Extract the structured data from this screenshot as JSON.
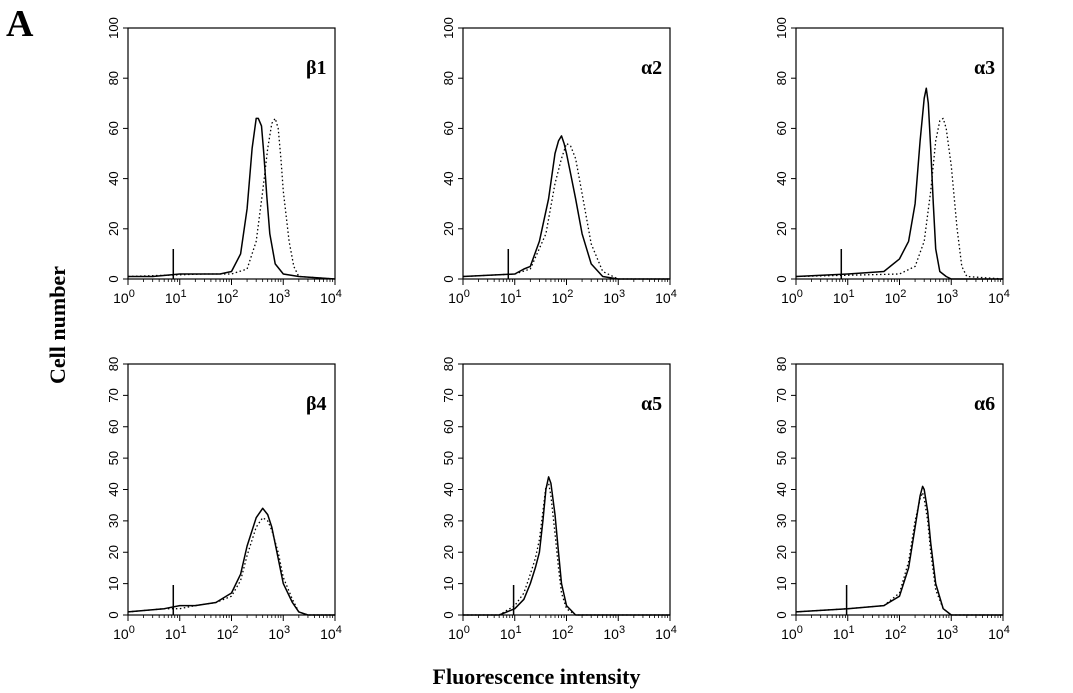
{
  "figure": {
    "panel_label": "A",
    "ylabel": "Cell number",
    "xlabel": "Fluorescence intensity"
  },
  "colors": {
    "line": "#000000",
    "background": "#ffffff"
  },
  "chart_data": [
    {
      "type": "line",
      "label": "β1",
      "xscale": "log",
      "xlim": [
        1,
        10000
      ],
      "ylim": [
        0,
        100
      ],
      "yticks": [
        0,
        20,
        40,
        60,
        80,
        100
      ],
      "xticks": [
        "10^0",
        "10^1",
        "10^2",
        "10^3",
        "10^4"
      ],
      "marker_x": 7.5,
      "series": [
        {
          "style": "solid",
          "x": [
            1,
            3,
            10,
            30,
            60,
            100,
            150,
            200,
            250,
            300,
            330,
            380,
            420,
            480,
            550,
            700,
            1000,
            2000,
            10000
          ],
          "y": [
            1,
            1,
            2,
            2,
            2,
            3,
            10,
            28,
            52,
            64,
            64,
            61,
            50,
            33,
            18,
            6,
            2,
            1,
            0
          ]
        },
        {
          "style": "dotted",
          "x": [
            1,
            30,
            100,
            200,
            300,
            400,
            500,
            600,
            700,
            800,
            900,
            1000,
            1300,
            1600,
            2000,
            10000
          ],
          "y": [
            1,
            2,
            2,
            4,
            15,
            35,
            52,
            62,
            64,
            60,
            48,
            35,
            15,
            5,
            1,
            0
          ]
        }
      ]
    },
    {
      "type": "line",
      "label": "α2",
      "xscale": "log",
      "xlim": [
        1,
        10000
      ],
      "ylim": [
        0,
        100
      ],
      "yticks": [
        0,
        20,
        40,
        60,
        80,
        100
      ],
      "xticks": [
        "10^0",
        "10^1",
        "10^2",
        "10^3",
        "10^4"
      ],
      "marker_x": 7.5,
      "series": [
        {
          "style": "solid",
          "x": [
            1,
            10,
            15,
            20,
            30,
            45,
            60,
            70,
            80,
            90,
            100,
            120,
            150,
            200,
            300,
            500,
            1000,
            10000
          ],
          "y": [
            1,
            2,
            4,
            5,
            15,
            32,
            50,
            55,
            57,
            54,
            50,
            42,
            32,
            18,
            6,
            1,
            0,
            0
          ]
        },
        {
          "style": "dotted",
          "x": [
            1,
            10,
            20,
            40,
            60,
            80,
            100,
            120,
            150,
            200,
            300,
            500,
            1000,
            10000
          ],
          "y": [
            1,
            2,
            4,
            18,
            38,
            48,
            54,
            53,
            48,
            34,
            14,
            3,
            0,
            0
          ]
        }
      ]
    },
    {
      "type": "line",
      "label": "α3",
      "xscale": "log",
      "xlim": [
        1,
        10000
      ],
      "ylim": [
        0,
        100
      ],
      "yticks": [
        0,
        20,
        40,
        60,
        80,
        100
      ],
      "xticks": [
        "10^0",
        "10^1",
        "10^2",
        "10^3",
        "10^4"
      ],
      "marker_x": 7.5,
      "series": [
        {
          "style": "solid",
          "x": [
            1,
            10,
            50,
            100,
            150,
            200,
            250,
            300,
            330,
            360,
            400,
            450,
            500,
            600,
            800,
            1000,
            2000,
            10000
          ],
          "y": [
            1,
            2,
            3,
            8,
            15,
            30,
            55,
            72,
            76,
            70,
            52,
            30,
            12,
            3,
            1,
            0,
            0,
            0
          ]
        },
        {
          "style": "dotted",
          "x": [
            1,
            100,
            200,
            300,
            400,
            500,
            600,
            700,
            800,
            1000,
            1300,
            1600,
            2000,
            10000
          ],
          "y": [
            1,
            2,
            5,
            15,
            35,
            55,
            63,
            64,
            60,
            45,
            20,
            5,
            1,
            0
          ]
        }
      ]
    },
    {
      "type": "line",
      "label": "β4",
      "xscale": "log",
      "xlim": [
        1,
        10000
      ],
      "ylim": [
        0,
        80
      ],
      "yticks": [
        0,
        10,
        20,
        30,
        40,
        50,
        60,
        70,
        80
      ],
      "xticks": [
        "10^0",
        "10^1",
        "10^2",
        "10^3",
        "10^4"
      ],
      "marker_x": 7.5,
      "series": [
        {
          "style": "solid",
          "x": [
            1,
            5,
            10,
            20,
            50,
            100,
            150,
            200,
            300,
            400,
            500,
            600,
            800,
            1000,
            1500,
            2000,
            3000,
            10000
          ],
          "y": [
            1,
            2,
            3,
            3,
            4,
            7,
            13,
            22,
            31,
            34,
            32,
            28,
            18,
            10,
            4,
            1,
            0,
            0
          ]
        },
        {
          "style": "dotted",
          "x": [
            1,
            5,
            10,
            20,
            50,
            100,
            150,
            200,
            300,
            400,
            500,
            600,
            800,
            1000,
            1500,
            2000,
            3000,
            10000
          ],
          "y": [
            1,
            2,
            2,
            3,
            4,
            6,
            11,
            19,
            28,
            31,
            30,
            27,
            20,
            12,
            5,
            1,
            0,
            0
          ]
        }
      ]
    },
    {
      "type": "line",
      "label": "α5",
      "xscale": "log",
      "xlim": [
        1,
        10000
      ],
      "ylim": [
        0,
        80
      ],
      "yticks": [
        0,
        10,
        20,
        30,
        40,
        50,
        60,
        70,
        80
      ],
      "xticks": [
        "10^0",
        "10^1",
        "10^2",
        "10^3",
        "10^4"
      ],
      "marker_x": 9.5,
      "series": [
        {
          "style": "solid",
          "x": [
            1,
            5,
            10,
            15,
            20,
            25,
            30,
            35,
            40,
            45,
            50,
            60,
            70,
            80,
            100,
            150,
            200,
            10000
          ],
          "y": [
            0,
            0,
            2,
            5,
            10,
            15,
            20,
            30,
            40,
            44,
            42,
            32,
            20,
            10,
            3,
            0,
            0,
            0
          ]
        },
        {
          "style": "dotted",
          "x": [
            1,
            5,
            10,
            15,
            20,
            25,
            30,
            35,
            40,
            45,
            50,
            60,
            70,
            80,
            100,
            150,
            200,
            10000
          ],
          "y": [
            0,
            0,
            3,
            7,
            13,
            18,
            24,
            33,
            41,
            42,
            38,
            26,
            15,
            7,
            2,
            0,
            0,
            0
          ]
        }
      ]
    },
    {
      "type": "line",
      "label": "α6",
      "xscale": "log",
      "xlim": [
        1,
        10000
      ],
      "ylim": [
        0,
        80
      ],
      "yticks": [
        0,
        10,
        20,
        30,
        40,
        50,
        60,
        70,
        80
      ],
      "xticks": [
        "10^0",
        "10^1",
        "10^2",
        "10^3",
        "10^4"
      ],
      "marker_x": 9.5,
      "series": [
        {
          "style": "solid",
          "x": [
            1,
            10,
            50,
            100,
            150,
            200,
            250,
            280,
            300,
            350,
            400,
            500,
            700,
            1000,
            10000
          ],
          "y": [
            1,
            2,
            3,
            6,
            15,
            28,
            38,
            41,
            40,
            33,
            23,
            10,
            2,
            0,
            0
          ]
        },
        {
          "style": "dotted",
          "x": [
            1,
            10,
            50,
            100,
            150,
            200,
            250,
            280,
            300,
            350,
            400,
            500,
            700,
            1000,
            10000
          ],
          "y": [
            1,
            2,
            3,
            7,
            17,
            30,
            37,
            39,
            37,
            30,
            20,
            8,
            2,
            0,
            0
          ]
        }
      ]
    }
  ]
}
